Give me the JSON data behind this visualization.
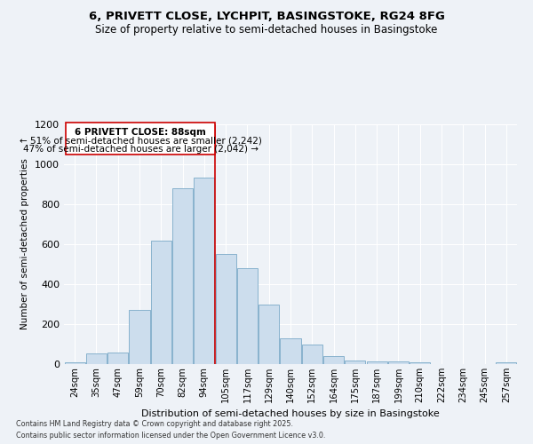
{
  "title1": "6, PRIVETT CLOSE, LYCHPIT, BASINGSTOKE, RG24 8FG",
  "title2": "Size of property relative to semi-detached houses in Basingstoke",
  "xlabel": "Distribution of semi-detached houses by size in Basingstoke",
  "ylabel": "Number of semi-detached properties",
  "bar_color": "#ccdded",
  "bar_edge_color": "#7aaac8",
  "categories": [
    "24sqm",
    "35sqm",
    "47sqm",
    "59sqm",
    "70sqm",
    "82sqm",
    "94sqm",
    "105sqm",
    "117sqm",
    "129sqm",
    "140sqm",
    "152sqm",
    "164sqm",
    "175sqm",
    "187sqm",
    "199sqm",
    "210sqm",
    "222sqm",
    "234sqm",
    "245sqm",
    "257sqm"
  ],
  "values": [
    10,
    55,
    60,
    270,
    620,
    880,
    935,
    550,
    480,
    300,
    130,
    100,
    40,
    20,
    15,
    12,
    10,
    2,
    2,
    2,
    10
  ],
  "ylim": [
    0,
    1200
  ],
  "yticks": [
    0,
    200,
    400,
    600,
    800,
    1000,
    1200
  ],
  "vline_index": 6.5,
  "vline_color": "#cc0000",
  "annotation_title": "6 PRIVETT CLOSE: 88sqm",
  "annotation_line1": "← 51% of semi-detached houses are smaller (2,242)",
  "annotation_line2": "47% of semi-detached houses are larger (2,042) →",
  "annotation_box_color": "#ffffff",
  "annotation_box_edge": "#cc0000",
  "footer1": "Contains HM Land Registry data © Crown copyright and database right 2025.",
  "footer2": "Contains public sector information licensed under the Open Government Licence v3.0.",
  "bg_color": "#eef2f7",
  "grid_color": "#ffffff"
}
